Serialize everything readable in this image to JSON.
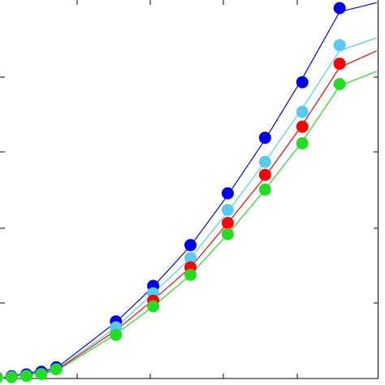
{
  "chart_data": {
    "type": "scatter",
    "title": "",
    "xlabel": "",
    "ylabel": "",
    "xlim": [
      0,
      10
    ],
    "ylim": [
      0,
      10
    ],
    "grid": false,
    "legend": "none",
    "series": [
      {
        "color": "#0000ee",
        "points": [
          [
            -0.2,
            0.03
          ],
          [
            0.2,
            0.06
          ],
          [
            0.6,
            0.11
          ],
          [
            1.0,
            0.18
          ],
          [
            1.4,
            0.3
          ],
          [
            3.0,
            1.54
          ],
          [
            4.0,
            2.5
          ],
          [
            5.0,
            3.6
          ],
          [
            6.0,
            5.0
          ],
          [
            7.0,
            6.5
          ],
          [
            8.0,
            8.0
          ],
          [
            9.0,
            10.0
          ]
        ],
        "fit": [
          [
            -0.2,
            0.0
          ],
          [
            1.4,
            0.28
          ],
          [
            3.0,
            1.52
          ],
          [
            4.0,
            2.48
          ],
          [
            5.0,
            3.58
          ],
          [
            6.0,
            4.95
          ],
          [
            7.0,
            6.45
          ],
          [
            8.0,
            8.1
          ],
          [
            9.0,
            9.9
          ],
          [
            10.0,
            10.15
          ]
        ]
      },
      {
        "color": "#55ccee",
        "points": [
          [
            3.0,
            1.38
          ],
          [
            4.0,
            2.3
          ],
          [
            5.0,
            3.25
          ],
          [
            6.0,
            4.55
          ],
          [
            7.0,
            5.85
          ],
          [
            8.0,
            7.2
          ],
          [
            9.0,
            9.0
          ]
        ],
        "fit": [
          [
            -0.2,
            0.0
          ],
          [
            1.4,
            0.24
          ],
          [
            3.0,
            1.38
          ],
          [
            4.0,
            2.3
          ],
          [
            5.0,
            3.25
          ],
          [
            6.0,
            4.5
          ],
          [
            7.0,
            5.85
          ],
          [
            8.0,
            7.3
          ],
          [
            9.0,
            8.85
          ],
          [
            10.0,
            9.2
          ]
        ]
      },
      {
        "color": "#ff0000",
        "points": [
          [
            4.0,
            2.1
          ],
          [
            5.0,
            3.0
          ],
          [
            6.0,
            4.2
          ],
          [
            7.0,
            5.5
          ],
          [
            8.0,
            6.8
          ],
          [
            9.0,
            8.5
          ]
        ],
        "fit": [
          [
            -0.2,
            0.0
          ],
          [
            1.4,
            0.22
          ],
          [
            3.0,
            1.3
          ],
          [
            4.0,
            2.12
          ],
          [
            5.0,
            3.0
          ],
          [
            6.0,
            4.2
          ],
          [
            7.0,
            5.45
          ],
          [
            8.0,
            6.85
          ],
          [
            9.0,
            8.4
          ],
          [
            10.0,
            8.85
          ]
        ]
      },
      {
        "color": "#22dd22",
        "points": [
          [
            -0.2,
            0.02
          ],
          [
            0.2,
            0.04
          ],
          [
            0.6,
            0.07
          ],
          [
            1.0,
            0.12
          ],
          [
            1.4,
            0.25
          ],
          [
            3.0,
            1.18
          ],
          [
            4.0,
            1.95
          ],
          [
            5.0,
            2.8
          ],
          [
            6.0,
            3.9
          ],
          [
            7.0,
            5.1
          ],
          [
            8.0,
            6.35
          ],
          [
            9.0,
            7.95
          ]
        ],
        "fit": [
          [
            -0.2,
            0.0
          ],
          [
            1.4,
            0.2
          ],
          [
            3.0,
            1.2
          ],
          [
            4.0,
            1.95
          ],
          [
            5.0,
            2.8
          ],
          [
            6.0,
            3.9
          ],
          [
            7.0,
            5.1
          ],
          [
            8.0,
            6.4
          ],
          [
            9.0,
            7.9
          ],
          [
            10.0,
            8.3
          ]
        ]
      }
    ]
  }
}
